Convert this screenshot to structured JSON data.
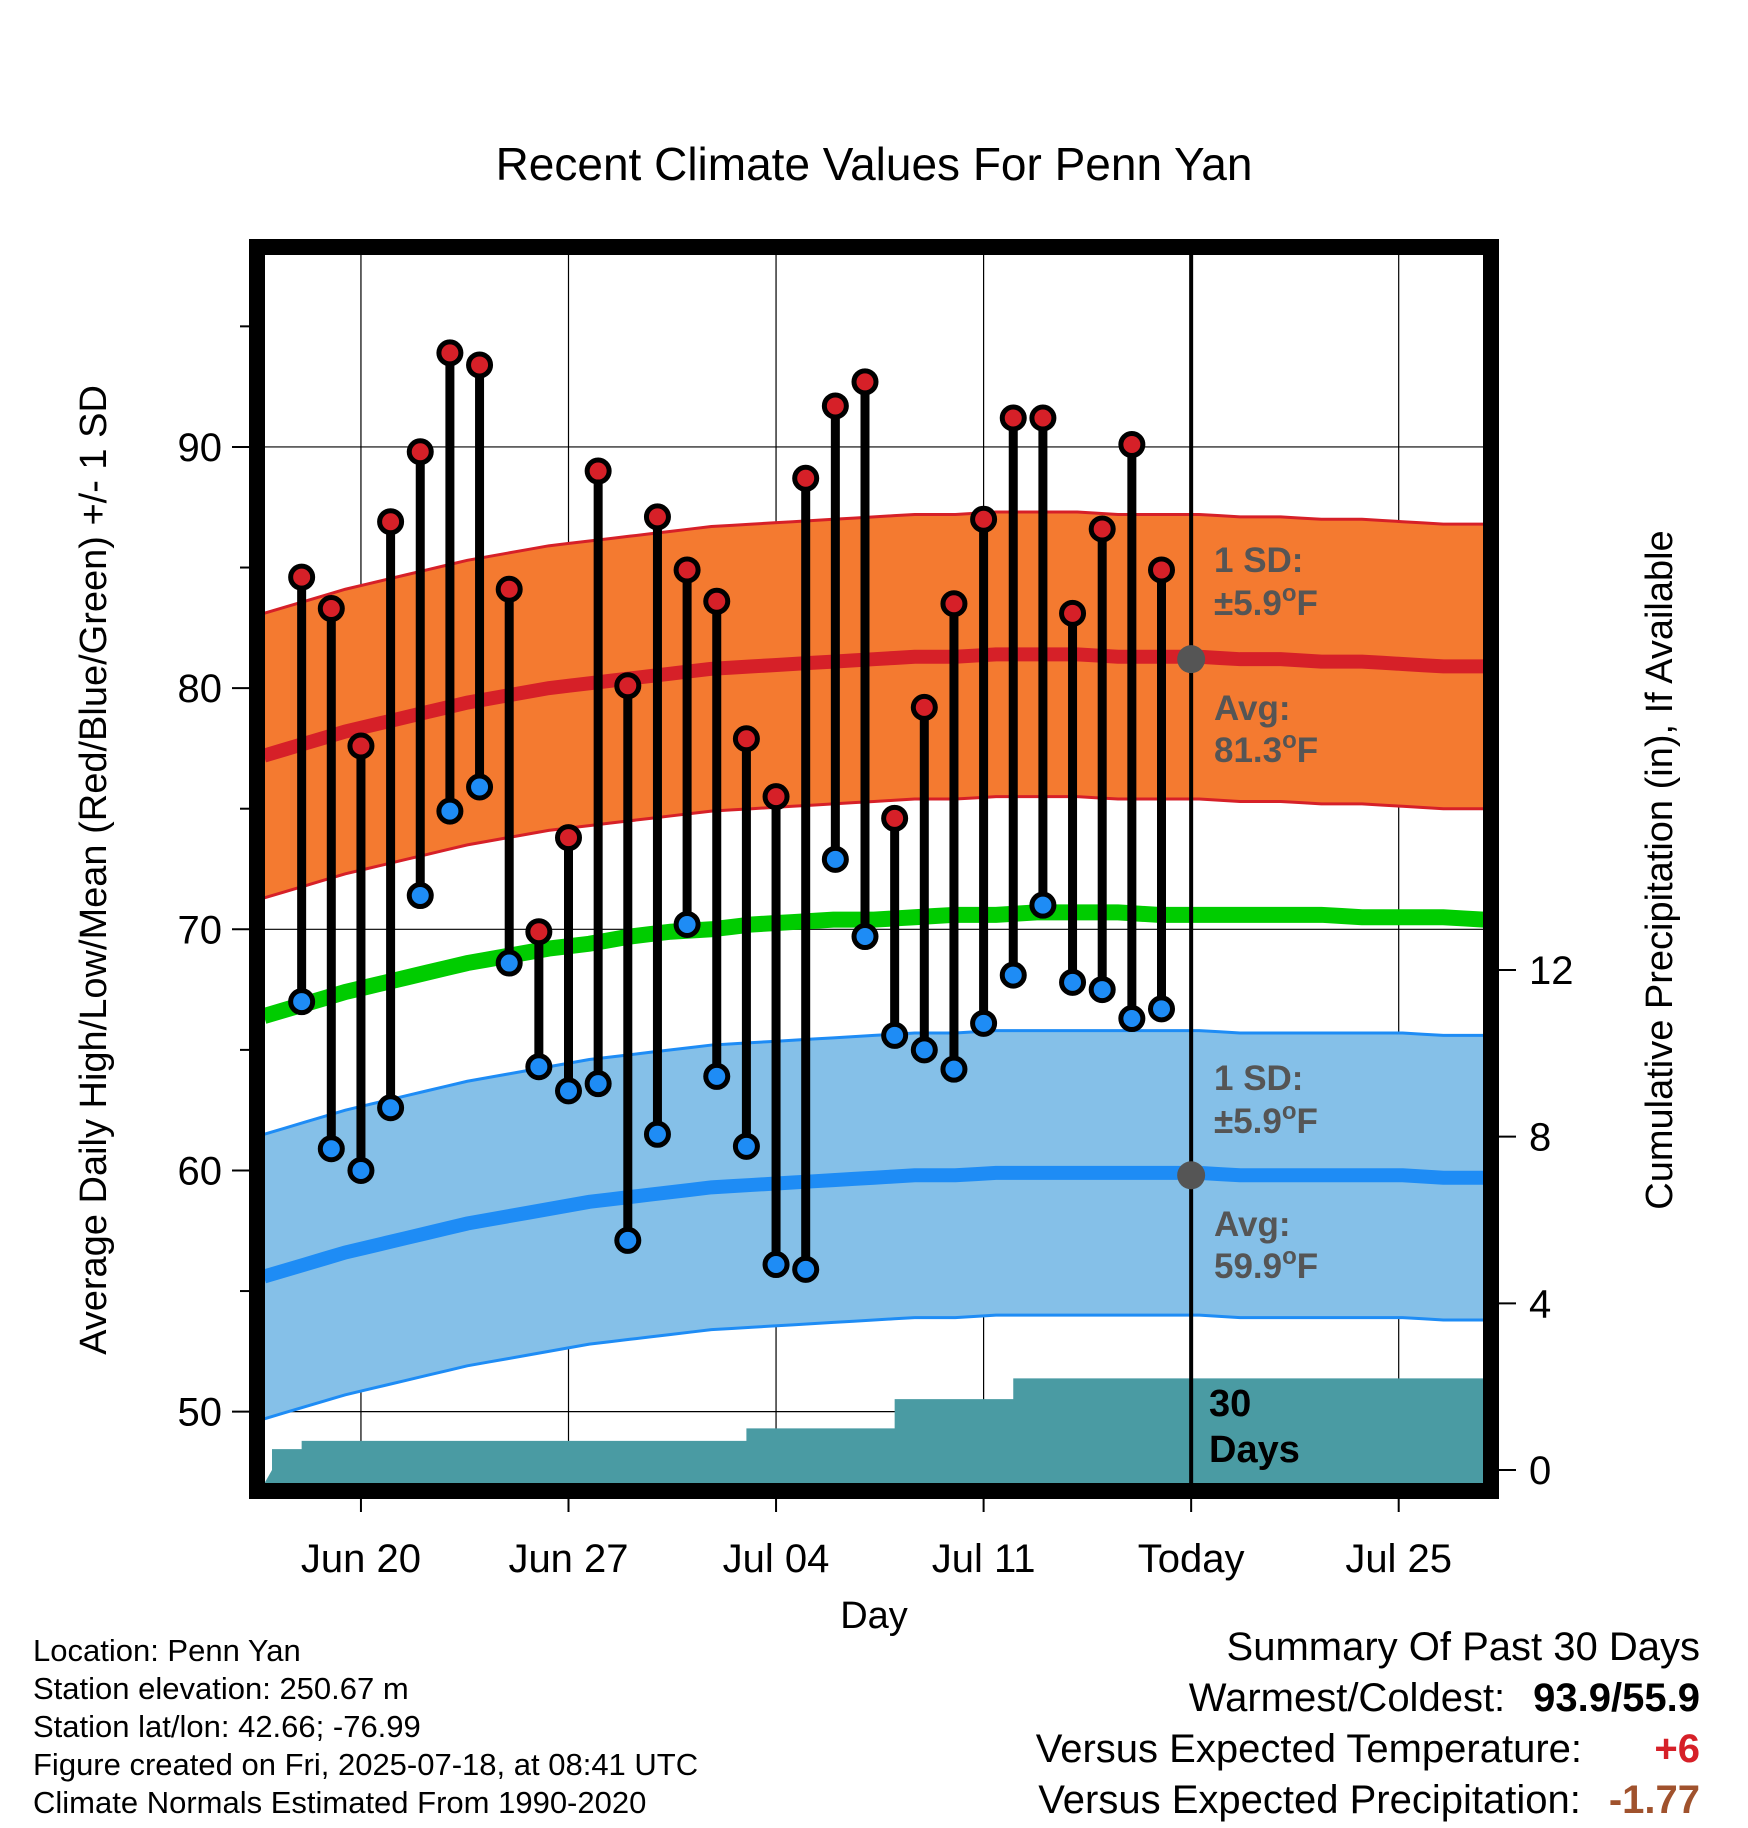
{
  "chart_data": {
    "type": "line",
    "title": "Recent Climate Values For Penn Yan",
    "xlabel": "Day",
    "ylabel": "Average Daily High/Low/Mean (Red/Blue/Green) +/- 1 SD",
    "y2label": "Cumulative Precipitation (in), If Available",
    "x_ticks": [
      "Jun 20",
      "Jun 27",
      "Jul 04",
      "Jul 11",
      "Today",
      "Jul 25"
    ],
    "y_ticks": [
      "50",
      "60",
      "70",
      "80",
      "90"
    ],
    "y2_ticks": [
      "0",
      "4",
      "8",
      "12"
    ],
    "ylim": [
      47,
      98
    ],
    "y2lim": [
      0,
      24
    ],
    "x_dates": [
      "Jun 17",
      "Jun 18",
      "Jun 19",
      "Jun 20",
      "Jun 21",
      "Jun 22",
      "Jun 23",
      "Jun 24",
      "Jun 25",
      "Jun 26",
      "Jun 27",
      "Jun 28",
      "Jun 29",
      "Jun 30",
      "Jul 01",
      "Jul 02",
      "Jul 03",
      "Jul 04",
      "Jul 05",
      "Jul 06",
      "Jul 07",
      "Jul 08",
      "Jul 09",
      "Jul 10",
      "Jul 11",
      "Jul 12",
      "Jul 13",
      "Jul 14",
      "Jul 15",
      "Jul 16",
      "Jul 17",
      "Jul 18",
      "Jul 19",
      "Jul 20",
      "Jul 21",
      "Jul 22",
      "Jul 23",
      "Jul 24",
      "Jul 25",
      "Jul 26",
      "Jul 27"
    ],
    "grid": true,
    "colors": {
      "high_band": "#f47a30",
      "high_avg": "#d62028",
      "low_band": "#85c0e8",
      "low_avg": "#1e8cf5",
      "mean": "#00cc00",
      "precip": "#4a9ba3",
      "high_marker": "#d62028",
      "low_marker": "#1e8cf5"
    },
    "normals": {
      "high_avg": [
        77.2,
        77.7,
        78.2,
        78.6,
        79.0,
        79.4,
        79.7,
        80.0,
        80.2,
        80.4,
        80.6,
        80.8,
        80.9,
        81.0,
        81.1,
        81.2,
        81.3,
        81.3,
        81.4,
        81.4,
        81.4,
        81.3,
        81.3,
        81.3,
        81.2,
        81.2,
        81.1,
        81.1,
        81.0,
        80.9,
        80.9
      ],
      "low_avg": [
        55.6,
        56.1,
        56.6,
        57.0,
        57.4,
        57.8,
        58.1,
        58.4,
        58.7,
        58.9,
        59.1,
        59.3,
        59.4,
        59.5,
        59.6,
        59.7,
        59.8,
        59.8,
        59.9,
        59.9,
        59.9,
        59.9,
        59.9,
        59.9,
        59.8,
        59.8,
        59.8,
        59.8,
        59.8,
        59.7,
        59.7
      ],
      "mean": [
        66.4,
        66.9,
        67.4,
        67.8,
        68.2,
        68.6,
        68.9,
        69.2,
        69.4,
        69.7,
        69.9,
        70.0,
        70.2,
        70.3,
        70.4,
        70.4,
        70.5,
        70.6,
        70.6,
        70.7,
        70.7,
        70.7,
        70.6,
        70.6,
        70.6,
        70.6,
        70.6,
        70.5,
        70.5,
        70.5,
        70.4
      ],
      "sd": 5.9
    },
    "series": [
      {
        "name": "High",
        "values": [
          84.6,
          83.3,
          77.6,
          86.9,
          89.8,
          93.9,
          93.4,
          84.1,
          69.9,
          73.8,
          89.0,
          80.1,
          87.1,
          84.9,
          83.6,
          77.9,
          75.5,
          88.7,
          91.7,
          92.7,
          74.6,
          79.2,
          83.5,
          87.0,
          91.2,
          91.2,
          83.1,
          86.6,
          90.1,
          84.9
        ]
      },
      {
        "name": "Low",
        "values": [
          67.0,
          60.9,
          60.0,
          62.6,
          71.4,
          74.9,
          75.9,
          68.6,
          64.3,
          63.3,
          63.6,
          57.1,
          61.5,
          70.2,
          63.9,
          61.0,
          56.1,
          55.9,
          72.9,
          69.7,
          65.6,
          65.0,
          64.2,
          66.1,
          68.1,
          71.0,
          67.8,
          67.5,
          66.3,
          66.7
        ]
      }
    ],
    "precip_cumulative": [
      0.0,
      0.5,
      0.7,
      0.7,
      0.7,
      0.7,
      0.7,
      0.7,
      0.7,
      0.7,
      0.7,
      0.7,
      0.7,
      0.7,
      0.7,
      0.7,
      0.7,
      1.0,
      1.0,
      1.0,
      1.0,
      1.0,
      1.7,
      1.7,
      1.7,
      1.7,
      2.2,
      2.2,
      2.2,
      2.2,
      2.2,
      2.2,
      2.2,
      2.2,
      2.2,
      2.2,
      2.2,
      2.2,
      2.2,
      2.2,
      2.2
    ],
    "annotations": {
      "high_sd": {
        "line1": "1 SD:",
        "line2": "±5.9",
        "unit": "F"
      },
      "high_avg": {
        "line1": "Avg:",
        "line2": "81.3",
        "unit": "F"
      },
      "low_sd": {
        "line1": "1 SD:",
        "line2": "±5.9",
        "unit": "F"
      },
      "low_avg": {
        "line1": "Avg:",
        "line2": "59.9",
        "unit": "F"
      },
      "days_line1": "30",
      "days_line2": "Days"
    }
  },
  "info": {
    "location": "Location: Penn Yan",
    "elevation": "Station elevation: 250.67 m",
    "latlon": "Station lat/lon: 42.66; -76.99",
    "created": "Figure created on Fri, 2025-07-18, at 08:41 UTC",
    "normals": "Climate Normals Estimated From 1990-2020"
  },
  "summary": {
    "heading": "Summary Of Past 30 Days",
    "warm_label": "Warmest/Coldest:",
    "warm_value": "93.9/55.9",
    "temp_label": "Versus Expected Temperature:",
    "temp_value": "+6",
    "temp_color": "#d62028",
    "precip_label": "Versus Expected Precipitation:",
    "precip_value": "-1.77",
    "precip_color": "#a0522d"
  }
}
